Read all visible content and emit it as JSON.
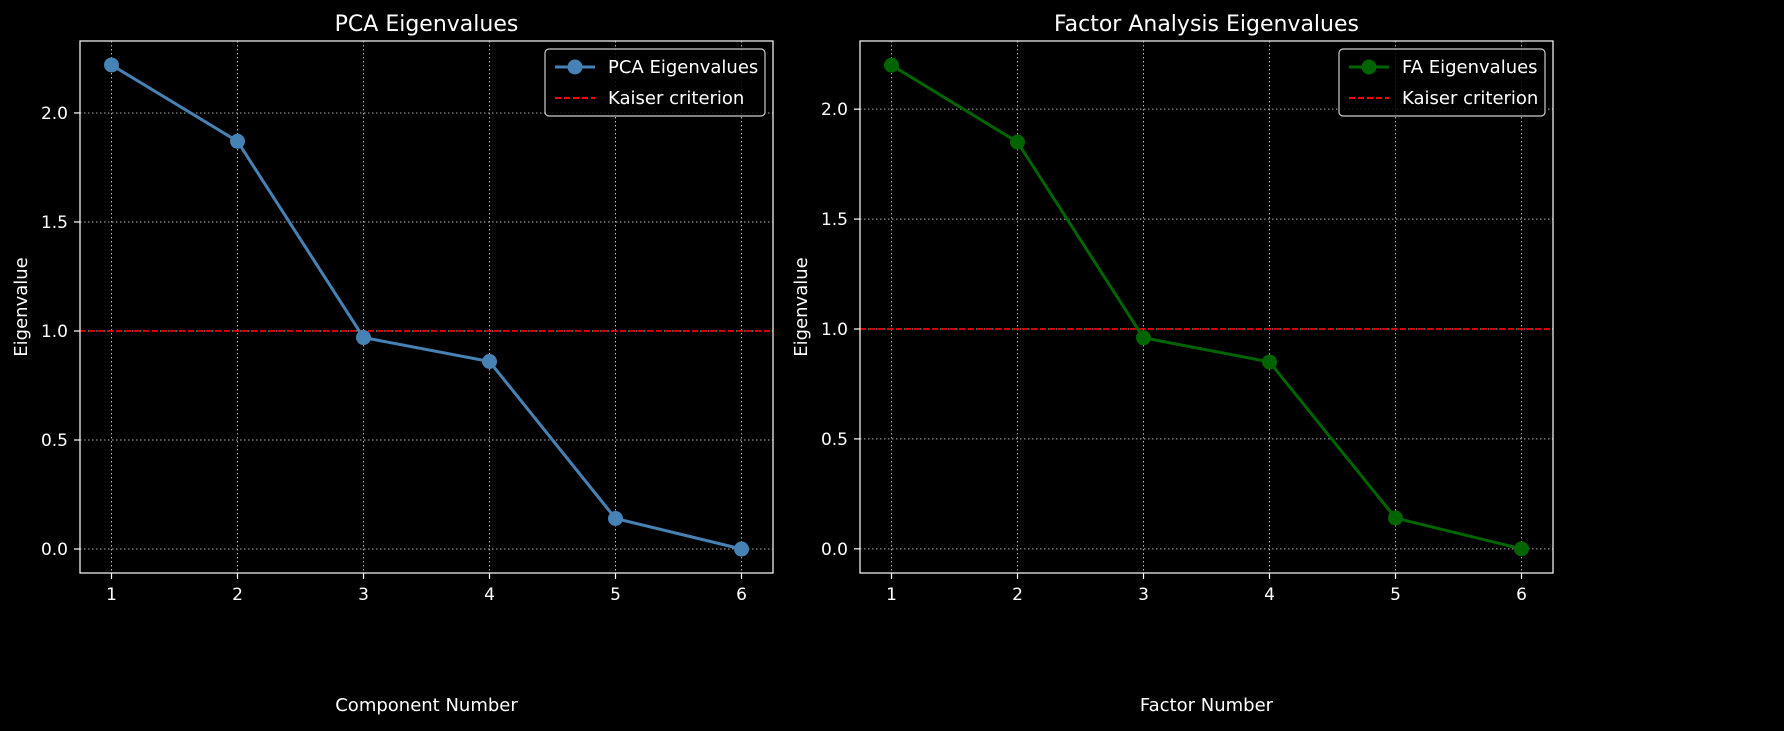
{
  "chart_data": [
    {
      "type": "line",
      "title": "PCA Eigenvalues",
      "xlabel": "Component Number",
      "ylabel": "Eigenvalue",
      "x": [
        1,
        2,
        3,
        4,
        5,
        6
      ],
      "xlim": [
        0.75,
        6.25
      ],
      "ylim": [
        -0.11,
        2.33
      ],
      "xticks": [
        "1",
        "2",
        "3",
        "4",
        "5",
        "6"
      ],
      "yticks": [
        "0.0",
        "0.5",
        "1.0",
        "1.5",
        "2.0"
      ],
      "grid": true,
      "legend_position": "upper right",
      "series": [
        {
          "name": "PCA Eigenvalues",
          "values": [
            2.22,
            1.87,
            0.97,
            0.86,
            0.14,
            0.0
          ],
          "color": "#4682b4",
          "style": "solid",
          "marker": "circle"
        }
      ],
      "reference_lines": [
        {
          "name": "Kaiser criterion",
          "y": 1.0,
          "color": "#ff0000",
          "style": "dashed"
        }
      ]
    },
    {
      "type": "line",
      "title": "Factor Analysis Eigenvalues",
      "xlabel": "Factor Number",
      "ylabel": "Eigenvalue",
      "x": [
        1,
        2,
        3,
        4,
        5,
        6
      ],
      "xlim": [
        0.75,
        6.25
      ],
      "ylim": [
        -0.11,
        2.31
      ],
      "xticks": [
        "1",
        "2",
        "3",
        "4",
        "5",
        "6"
      ],
      "yticks": [
        "0.0",
        "0.5",
        "1.0",
        "1.5",
        "2.0"
      ],
      "grid": true,
      "legend_position": "upper right",
      "series": [
        {
          "name": "FA Eigenvalues",
          "values": [
            2.2,
            1.85,
            0.96,
            0.85,
            0.14,
            0.0
          ],
          "color": "#006400",
          "style": "solid",
          "marker": "circle"
        }
      ],
      "reference_lines": [
        {
          "name": "Kaiser criterion",
          "y": 1.0,
          "color": "#ff0000",
          "style": "dashed"
        }
      ]
    }
  ]
}
